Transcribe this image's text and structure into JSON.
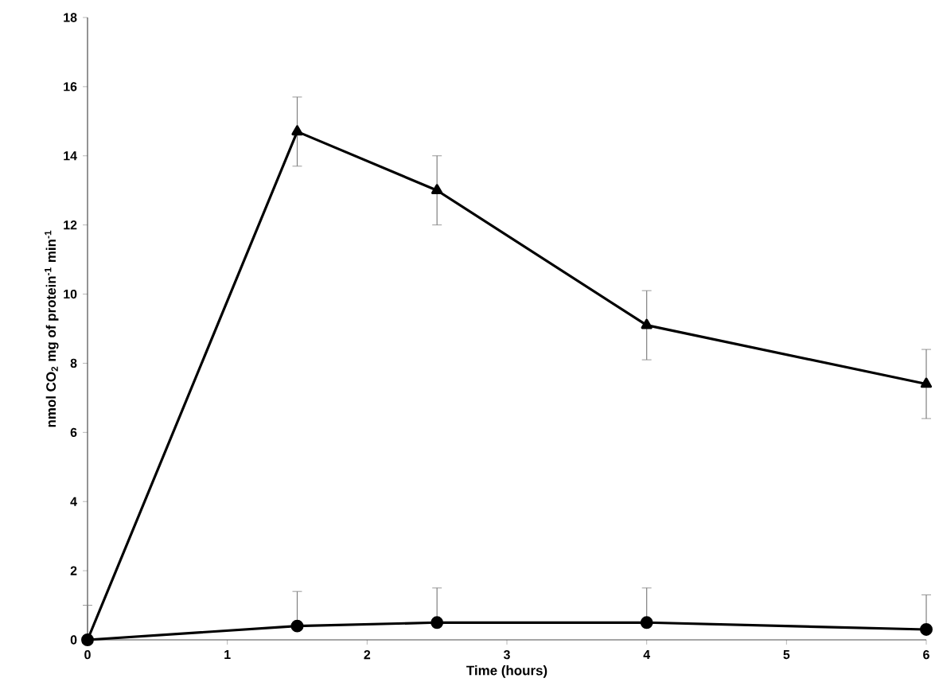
{
  "chart_data": {
    "type": "line",
    "xlabel": "Time (hours)",
    "ylabel": "nmol CO$_{2}$  mg of protein$^{-1}$ min$^{-1}$",
    "xlim": [
      0,
      6
    ],
    "ylim": [
      0,
      18
    ],
    "xticks": [
      0,
      1,
      2,
      3,
      4,
      5,
      6
    ],
    "yticks": [
      0,
      2,
      4,
      6,
      8,
      10,
      12,
      14,
      16,
      18
    ],
    "grid": false,
    "line_style": "solid",
    "series": [
      {
        "color": "#000000",
        "marker": "circle",
        "x": [
          0,
          1.5,
          2.5,
          4,
          6
        ],
        "values": [
          0,
          0.4,
          0.5,
          0.5,
          0.3
        ],
        "errors": [
          [
            0,
            1.0
          ],
          [
            0.4,
            1.4
          ],
          [
            0.5,
            1.5
          ],
          [
            0.5,
            1.5
          ],
          [
            0.3,
            1.3
          ]
        ]
      },
      {
        "color": "#000000",
        "marker": "triangle",
        "x": [
          0,
          1.5,
          2.5,
          4,
          6
        ],
        "values": [
          0,
          14.7,
          13.0,
          9.1,
          7.4
        ],
        "errors": [
          null,
          1.0,
          1.0,
          1.0,
          1.0
        ]
      }
    ]
  }
}
